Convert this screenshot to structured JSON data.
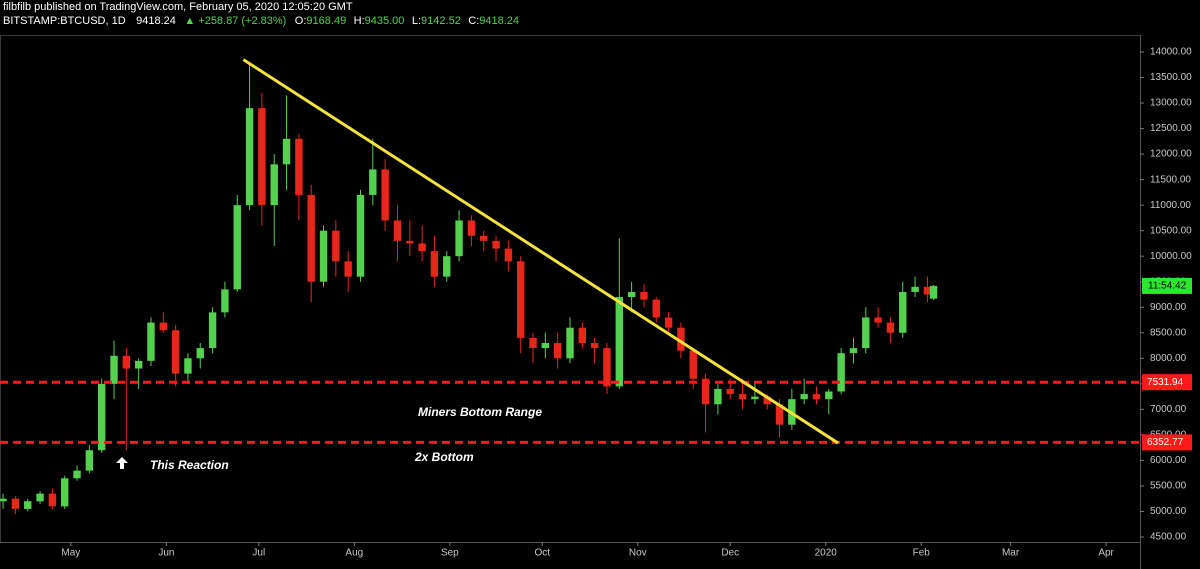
{
  "header": {
    "line1": "filbfilb published on TradingView.com, February 05, 2020 12:05:20 GMT",
    "symbol": "BITSTAMP:BTCUSD, 1D",
    "last": "9418.24",
    "change": "▲ +258.87 (+2.83%)",
    "o_label": "O:",
    "o": "9168.49",
    "h_label": "H:",
    "h": "9435.00",
    "l_label": "L:",
    "l": "9142.52",
    "c_label": "C:",
    "c": "9418.24"
  },
  "chart_data": {
    "type": "candlestick",
    "x": [
      98,
      102,
      106,
      110,
      114,
      118,
      122,
      126,
      130,
      134,
      138,
      142,
      146,
      150,
      154,
      158,
      162,
      166,
      170,
      174,
      178,
      182,
      186,
      190,
      194,
      198,
      202,
      206,
      210,
      214,
      218,
      222,
      226,
      230,
      234,
      238,
      242,
      246,
      250,
      254,
      258,
      262,
      266,
      270,
      274,
      278,
      282,
      286,
      290,
      294,
      298,
      302,
      306,
      310,
      314,
      318,
      322,
      326,
      330,
      334,
      338,
      342,
      346,
      350,
      354,
      358,
      362,
      366,
      370,
      374,
      378,
      382,
      386,
      390,
      394,
      398,
      400
    ],
    "open": [
      5200,
      5250,
      5050,
      5200,
      5350,
      5100,
      5650,
      5800,
      6200,
      7500,
      8050,
      7800,
      7950,
      8700,
      8550,
      7700,
      8000,
      8200,
      8900,
      9350,
      11000,
      12900,
      11000,
      11800,
      12300,
      11200,
      9500,
      10500,
      9900,
      9600,
      11200,
      11700,
      10700,
      10300,
      10250,
      10100,
      9600,
      10000,
      10700,
      10400,
      10300,
      10150,
      9900,
      8400,
      8200,
      8300,
      8000,
      8600,
      8300,
      8200,
      7450,
      9200,
      9300,
      9150,
      8800,
      8600,
      8150,
      7600,
      7100,
      7400,
      7300,
      7200,
      7250,
      7100,
      6700,
      7200,
      7300,
      7200,
      7350,
      8100,
      8200,
      8800,
      8700,
      8500,
      9300,
      9400,
      9168.49
    ],
    "high": [
      5350,
      5300,
      5250,
      5400,
      5450,
      5700,
      5900,
      6300,
      7600,
      8350,
      8200,
      8000,
      8800,
      8900,
      8650,
      8100,
      8300,
      9000,
      9500,
      11200,
      13800,
      13200,
      12000,
      13150,
      12400,
      11400,
      10600,
      10700,
      10100,
      11300,
      12300,
      11900,
      11000,
      10700,
      10600,
      10400,
      10100,
      10900,
      10800,
      10500,
      10400,
      10300,
      10000,
      8500,
      8500,
      8500,
      8800,
      8700,
      8400,
      8300,
      10350,
      9500,
      9450,
      9200,
      8900,
      8700,
      8200,
      7700,
      7500,
      7600,
      7600,
      7500,
      7300,
      7200,
      7400,
      7600,
      7450,
      7400,
      8200,
      8400,
      9000,
      9000,
      8800,
      9500,
      9600,
      9600,
      9435
    ],
    "low": [
      5050,
      4950,
      5000,
      5150,
      5050,
      5050,
      5600,
      5750,
      6150,
      7200,
      6200,
      7400,
      7850,
      8500,
      7450,
      7500,
      7800,
      8100,
      8800,
      9300,
      10900,
      10600,
      10200,
      11300,
      10700,
      9100,
      9400,
      9600,
      9300,
      9500,
      11000,
      10500,
      9900,
      10000,
      9900,
      9400,
      9500,
      9900,
      10200,
      10100,
      9900,
      9700,
      8100,
      7900,
      8000,
      7800,
      7900,
      8200,
      7900,
      7300,
      7400,
      8900,
      9000,
      8700,
      8500,
      8000,
      7400,
      6550,
      6900,
      7200,
      7000,
      7100,
      7000,
      6450,
      6600,
      7100,
      7100,
      6900,
      7300,
      7900,
      8100,
      8600,
      8300,
      8400,
      9200,
      9100,
      9142.52
    ],
    "close": [
      5250,
      5050,
      5200,
      5350,
      5100,
      5650,
      5800,
      6200,
      7500,
      8050,
      7800,
      7950,
      8700,
      8550,
      7700,
      8000,
      8200,
      8900,
      9350,
      11000,
      12900,
      11000,
      11800,
      12300,
      11200,
      9500,
      10500,
      9900,
      9600,
      11200,
      11700,
      10700,
      10300,
      10250,
      10100,
      9600,
      10000,
      10700,
      10400,
      10300,
      10150,
      9900,
      8400,
      8200,
      8300,
      8000,
      8600,
      8300,
      8200,
      7450,
      9200,
      9300,
      9150,
      8800,
      8600,
      8150,
      7600,
      7100,
      7400,
      7300,
      7200,
      7250,
      7100,
      6700,
      7200,
      7300,
      7200,
      7350,
      8100,
      8200,
      8800,
      8700,
      8500,
      9300,
      9400,
      9250,
      9418.24
    ],
    "up_color": "#53d14f",
    "down_color": "#e8261c",
    "xlim": [
      97,
      467
    ],
    "xticks": [
      {
        "value": 120,
        "label": "May"
      },
      {
        "value": 151,
        "label": "Jun"
      },
      {
        "value": 181,
        "label": "Jul"
      },
      {
        "value": 212,
        "label": "Aug"
      },
      {
        "value": 243,
        "label": "Sep"
      },
      {
        "value": 273,
        "label": "Oct"
      },
      {
        "value": 304,
        "label": "Nov"
      },
      {
        "value": 334,
        "label": "Dec"
      },
      {
        "value": 365,
        "label": "2020"
      },
      {
        "value": 396,
        "label": "Feb"
      },
      {
        "value": 425,
        "label": "Mar"
      },
      {
        "value": 456,
        "label": "Apr"
      }
    ],
    "ylim": [
      4402,
      14333
    ],
    "yticks": [
      {
        "value": 4500,
        "label": "4500.00"
      },
      {
        "value": 5000,
        "label": "5000.00"
      },
      {
        "value": 5500,
        "label": "5500.00"
      },
      {
        "value": 6000,
        "label": "6000.00"
      },
      {
        "value": 6500,
        "label": "6500.00"
      },
      {
        "value": 7000,
        "label": "7000.00"
      },
      {
        "value": 7500,
        "label": "7500.00"
      },
      {
        "value": 8000,
        "label": "8000.00"
      },
      {
        "value": 8500,
        "label": "8500.00"
      },
      {
        "value": 9000,
        "label": "9000.00"
      },
      {
        "value": 9500,
        "label": "9500.00"
      },
      {
        "value": 10000,
        "label": "10000.00"
      },
      {
        "value": 10500,
        "label": "10500.00"
      },
      {
        "value": 11000,
        "label": "11000.00"
      },
      {
        "value": 11500,
        "label": "11500.00"
      },
      {
        "value": 12000,
        "label": "12000.00"
      },
      {
        "value": 12500,
        "label": "12500.00"
      },
      {
        "value": 13000,
        "label": "13000.00"
      },
      {
        "value": 13500,
        "label": "13500.00"
      },
      {
        "value": 14000,
        "label": "14000.00"
      }
    ],
    "grid": false,
    "trendline": {
      "x": [
        176,
        369
      ],
      "y": [
        13850,
        6340
      ],
      "color": "#f5e23c"
    },
    "price_lines": [
      {
        "value": 7531.94,
        "color": "#ff1a1a"
      },
      {
        "value": 6352.77,
        "color": "#ff1a1a"
      }
    ],
    "price_tag": "11:54:42",
    "price_tag_color": "#2ee62e",
    "annotations": [
      "Miners Bottom Range",
      "This Reaction",
      "2x Bottom"
    ]
  }
}
